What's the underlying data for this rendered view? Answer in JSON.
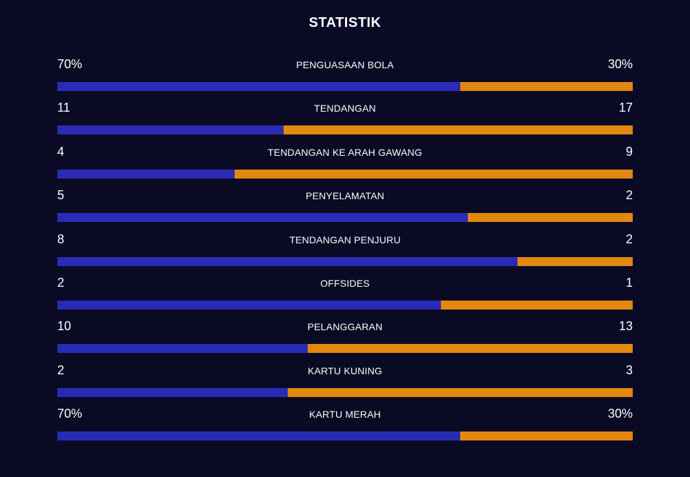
{
  "title": "STATISTIK",
  "colors": {
    "background": "#0b0a24",
    "home_bar": "#2a2bb5",
    "away_bar": "#e2880f",
    "text": "#ffffff"
  },
  "stats": [
    {
      "label": "PENGUASAAN BOLA",
      "home": "70%",
      "away": "30%",
      "home_share": 0.7
    },
    {
      "label": "TENDANGAN",
      "home": "11",
      "away": "17",
      "home_share": 0.393
    },
    {
      "label": "TENDANGAN KE ARAH GAWANG",
      "home": "4",
      "away": "9",
      "home_share": 0.308
    },
    {
      "label": "PENYELAMATAN",
      "home": "5",
      "away": "2",
      "home_share": 0.714
    },
    {
      "label": "TENDANGAN PENJURU",
      "home": "8",
      "away": "2",
      "home_share": 0.8
    },
    {
      "label": "OFFSIDES",
      "home": "2",
      "away": "1",
      "home_share": 0.667
    },
    {
      "label": "PELANGGARAN",
      "home": "10",
      "away": "13",
      "home_share": 0.435
    },
    {
      "label": "KARTU KUNING",
      "home": "2",
      "away": "3",
      "home_share": 0.4
    },
    {
      "label": "KARTU MERAH",
      "home": "70%",
      "away": "30%",
      "home_share": 0.7
    }
  ]
}
